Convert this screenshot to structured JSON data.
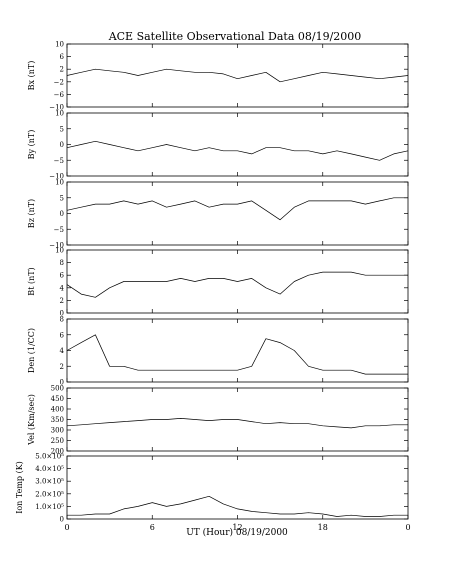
{
  "title": "ACE Satellite Observational Data   08/19/2000",
  "xlabel": "UT (Hour)   08/19/2000",
  "x_ticks": [
    "0",
    "6",
    "12",
    "18",
    "0"
  ],
  "chart_data": [
    {
      "type": "line",
      "ylabel": "Bx (nT)",
      "ylim": [
        -10,
        10
      ],
      "yticks": [
        -10,
        -6,
        -2,
        2,
        6,
        10
      ],
      "ytick_labels": [
        "−10",
        "−6",
        "−2",
        "2",
        "6",
        "10"
      ],
      "x": [
        0,
        1,
        2,
        3,
        4,
        5,
        6,
        7,
        8,
        9,
        10,
        11,
        12,
        13,
        14,
        15,
        16,
        17,
        18,
        19,
        20,
        21,
        22,
        23,
        24
      ],
      "series": [
        {
          "values": [
            0,
            1,
            2,
            1.5,
            1,
            0,
            1,
            2,
            1.5,
            1,
            1,
            0.5,
            -1,
            0,
            1,
            -2,
            -1,
            0,
            1,
            0.5,
            0,
            -0.5,
            -1,
            -0.5,
            0
          ]
        }
      ]
    },
    {
      "type": "line",
      "ylabel": "By (nT)",
      "ylim": [
        -10,
        10
      ],
      "yticks": [
        -10,
        -5,
        0,
        5,
        10
      ],
      "ytick_labels": [
        "−10",
        "−5",
        "0",
        "5",
        "10"
      ],
      "x": [
        0,
        1,
        2,
        3,
        4,
        5,
        6,
        7,
        8,
        9,
        10,
        11,
        12,
        13,
        14,
        15,
        16,
        17,
        18,
        19,
        20,
        21,
        22,
        23,
        24
      ],
      "series": [
        {
          "values": [
            -1,
            0,
            1,
            0,
            -1,
            -2,
            -1,
            0,
            -1,
            -2,
            -1,
            -2,
            -2,
            -3,
            -1,
            -1,
            -2,
            -2,
            -3,
            -2,
            -3,
            -4,
            -5,
            -3,
            -2
          ]
        }
      ]
    },
    {
      "type": "line",
      "ylabel": "Bz (nT)",
      "ylim": [
        -10,
        10
      ],
      "yticks": [
        -10,
        -5,
        0,
        5,
        10
      ],
      "ytick_labels": [
        "−10",
        "−5",
        "0",
        "5",
        "10"
      ],
      "x": [
        0,
        1,
        2,
        3,
        4,
        5,
        6,
        7,
        8,
        9,
        10,
        11,
        12,
        13,
        14,
        15,
        16,
        17,
        18,
        19,
        20,
        21,
        22,
        23,
        24
      ],
      "series": [
        {
          "values": [
            1,
            2,
            3,
            3,
            4,
            3,
            4,
            2,
            3,
            4,
            2,
            3,
            3,
            4,
            1,
            -2,
            2,
            4,
            4,
            4,
            4,
            3,
            4,
            5,
            5
          ]
        }
      ]
    },
    {
      "type": "line",
      "ylabel": "Bt (nT)",
      "ylim": [
        0,
        10
      ],
      "yticks": [
        0,
        2,
        4,
        6,
        8,
        10
      ],
      "ytick_labels": [
        "0",
        "2",
        "4",
        "6",
        "8",
        "10"
      ],
      "x": [
        0,
        1,
        2,
        3,
        4,
        5,
        6,
        7,
        8,
        9,
        10,
        11,
        12,
        13,
        14,
        15,
        16,
        17,
        18,
        19,
        20,
        21,
        22,
        23,
        24
      ],
      "series": [
        {
          "values": [
            4.5,
            3,
            2.5,
            4,
            5,
            5,
            5,
            5,
            5.5,
            5,
            5.5,
            5.5,
            5,
            5.5,
            4,
            3,
            5,
            6,
            6.5,
            6.5,
            6.5,
            6,
            6,
            6,
            6
          ]
        }
      ]
    },
    {
      "type": "line",
      "ylabel": "Den (1/CC)",
      "ylim": [
        0,
        8
      ],
      "yticks": [
        0,
        2,
        4,
        6,
        8
      ],
      "ytick_labels": [
        "0",
        "2",
        "4",
        "6",
        "8"
      ],
      "x": [
        0,
        1,
        2,
        3,
        4,
        5,
        6,
        7,
        8,
        9,
        10,
        11,
        12,
        13,
        14,
        15,
        16,
        17,
        18,
        19,
        20,
        21,
        22,
        23,
        24
      ],
      "series": [
        {
          "values": [
            4,
            5,
            6,
            2,
            2,
            1.5,
            1.5,
            1.5,
            1.5,
            1.5,
            1.5,
            1.5,
            1.5,
            2,
            5.5,
            5,
            4,
            2,
            1.5,
            1.5,
            1.5,
            1,
            1,
            1,
            1
          ]
        }
      ]
    },
    {
      "type": "line",
      "ylabel": "Vel (Km/sec)",
      "ylim": [
        200,
        500
      ],
      "yticks": [
        200,
        250,
        300,
        350,
        400,
        450,
        500
      ],
      "ytick_labels": [
        "200",
        "250",
        "300",
        "350",
        "400",
        "450",
        "500"
      ],
      "x": [
        0,
        1,
        2,
        3,
        4,
        5,
        6,
        7,
        8,
        9,
        10,
        11,
        12,
        13,
        14,
        15,
        16,
        17,
        18,
        19,
        20,
        21,
        22,
        23,
        24
      ],
      "series": [
        {
          "values": [
            320,
            325,
            330,
            335,
            340,
            345,
            350,
            350,
            355,
            350,
            345,
            350,
            350,
            340,
            330,
            335,
            330,
            330,
            320,
            315,
            310,
            320,
            320,
            325,
            325
          ]
        }
      ]
    },
    {
      "type": "line",
      "ylabel": "Ion Temp (K)",
      "ylim": [
        0,
        5.0
      ],
      "yticks": [
        0,
        1.0,
        2.0,
        3.0,
        4.0,
        5.0
      ],
      "ytick_labels": [
        "0",
        "1.0×10⁵",
        "2.0×10⁵",
        "3.0×10⁵",
        "4.0×10⁵",
        "5.0×10⁵"
      ],
      "x": [
        0,
        1,
        2,
        3,
        4,
        5,
        6,
        7,
        8,
        9,
        10,
        11,
        12,
        13,
        14,
        15,
        16,
        17,
        18,
        19,
        20,
        21,
        22,
        23,
        24
      ],
      "series": [
        {
          "values": [
            0.3,
            0.3,
            0.4,
            0.4,
            0.8,
            1.0,
            1.3,
            1.0,
            1.2,
            1.5,
            1.8,
            1.2,
            0.8,
            0.6,
            0.5,
            0.4,
            0.4,
            0.5,
            0.4,
            0.2,
            0.3,
            0.2,
            0.2,
            0.3,
            0.3
          ]
        }
      ]
    }
  ]
}
